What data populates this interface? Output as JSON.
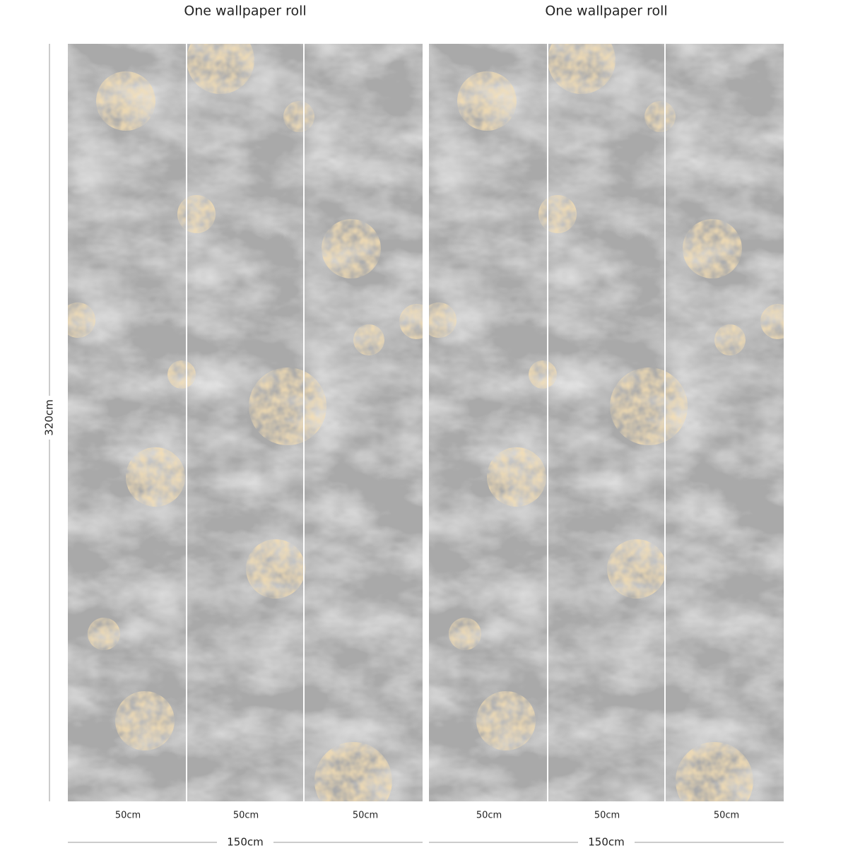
{
  "height_label": "320cm",
  "rolls": [
    {
      "title": "One wallpaper roll",
      "panel_widths": [
        "50cm",
        "50cm",
        "50cm"
      ],
      "total_width": "150cm"
    },
    {
      "title": "One wallpaper roll",
      "panel_widths": [
        "50cm",
        "50cm",
        "50cm"
      ],
      "total_width": "150cm"
    }
  ]
}
